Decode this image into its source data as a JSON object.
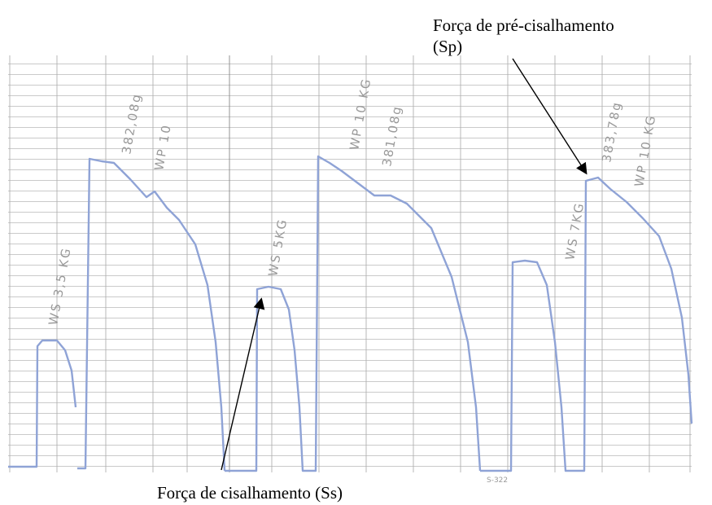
{
  "annotations": {
    "pre_shear": [
      "Força de pré-cisalhamento",
      "(Sp)"
    ],
    "shear": "Força de cisalhamento (Ss)"
  },
  "handwritten_labels": [
    "WS 3,5 KG",
    "382,08g",
    "WP 10",
    "WS 5KG",
    "WP 10 KG",
    "381,08g",
    "WS 7KG",
    "383,78g",
    "WP 10 KG",
    "S-322"
  ]
}
